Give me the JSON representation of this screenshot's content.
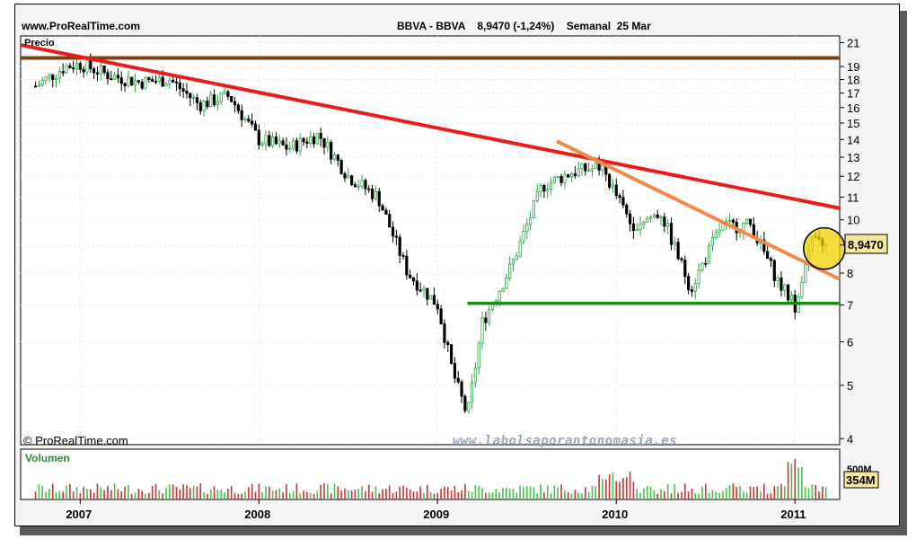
{
  "header": {
    "site": "www.ProRealTime.com",
    "quote": "BBVA - BBVA    8,9470 (-1,24%)    Semanal  25 Mar"
  },
  "watermark": "www.labolsaporantonomasia.es",
  "copyright": "© ProRealTime.com",
  "price_panel": {
    "label": "Precio",
    "last_price_badge": "8,9470"
  },
  "volume_panel": {
    "label": "Volumen",
    "scale_tick": "500M",
    "last_volume_badge": "354M"
  },
  "colors": {
    "up_candle": "#2fa84a",
    "down_candle": "#000000",
    "volume_up": "#44c24a",
    "volume_down": "#cc3333",
    "resistance_brown": "#7a3f12",
    "long_downtrend": "#ee1a1a",
    "short_downtrend": "#f08a4b",
    "support_green": "#1a8a1a",
    "highlight_circle": "#f2d200",
    "badge": "#f7e79a"
  },
  "chart_data": {
    "type": "candlestick",
    "title": "BBVA - BBVA",
    "timeframe": "Semanal",
    "last_close": 8.947,
    "change_pct": -1.24,
    "y_scale": "log",
    "ylim": [
      3.9,
      21.6
    ],
    "y_ticks": [
      4,
      5,
      6,
      7,
      8,
      9,
      10,
      11,
      12,
      13,
      14,
      15,
      16,
      17,
      18,
      19,
      21
    ],
    "x_range": [
      "2006-09",
      "2011-04"
    ],
    "x_ticks": [
      "2007",
      "2008",
      "2009",
      "2010",
      "2011"
    ],
    "close_path": [
      {
        "t": "2006-10",
        "v": 17.5
      },
      {
        "t": "2006-12",
        "v": 19.0
      },
      {
        "t": "2007-01",
        "v": 19.2
      },
      {
        "t": "2007-03",
        "v": 18.3
      },
      {
        "t": "2007-05",
        "v": 17.8
      },
      {
        "t": "2007-07",
        "v": 18.0
      },
      {
        "t": "2007-09",
        "v": 16.2
      },
      {
        "t": "2007-11",
        "v": 16.8
      },
      {
        "t": "2008-01",
        "v": 14.0
      },
      {
        "t": "2008-03",
        "v": 13.5
      },
      {
        "t": "2008-05",
        "v": 14.3
      },
      {
        "t": "2008-07",
        "v": 12.0
      },
      {
        "t": "2008-09",
        "v": 11.0
      },
      {
        "t": "2008-11",
        "v": 8.0
      },
      {
        "t": "2009-01",
        "v": 7.0
      },
      {
        "t": "2009-02",
        "v": 5.3
      },
      {
        "t": "2009-03",
        "v": 4.4
      },
      {
        "t": "2009-04",
        "v": 6.5
      },
      {
        "t": "2009-06",
        "v": 8.3
      },
      {
        "t": "2009-08",
        "v": 11.5
      },
      {
        "t": "2009-10",
        "v": 12.2
      },
      {
        "t": "2009-12",
        "v": 12.5
      },
      {
        "t": "2010-02",
        "v": 9.8
      },
      {
        "t": "2010-04",
        "v": 10.3
      },
      {
        "t": "2010-06",
        "v": 7.5
      },
      {
        "t": "2010-08",
        "v": 9.7
      },
      {
        "t": "2010-10",
        "v": 9.8
      },
      {
        "t": "2010-12",
        "v": 7.6
      },
      {
        "t": "2011-01",
        "v": 7.0
      },
      {
        "t": "2011-02",
        "v": 9.1
      },
      {
        "t": "2011-03",
        "v": 8.95
      }
    ],
    "lines": [
      {
        "name": "resistance",
        "color": "#7a3f12",
        "from": {
          "t": "2006-09",
          "v": 19.7
        },
        "to": {
          "t": "2011-04",
          "v": 19.7
        }
      },
      {
        "name": "long-downtrend",
        "color": "#ee1a1a",
        "from": {
          "t": "2006-09",
          "v": 20.8
        },
        "to": {
          "t": "2011-04",
          "v": 10.5
        }
      },
      {
        "name": "short-downtrend",
        "color": "#f08a4b",
        "from": {
          "t": "2009-09",
          "v": 13.9
        },
        "to": {
          "t": "2011-04",
          "v": 7.8
        }
      },
      {
        "name": "support",
        "color": "#1a8a1a",
        "from": {
          "t": "2009-03",
          "v": 7.05
        },
        "to": {
          "t": "2011-04",
          "v": 7.05
        }
      }
    ],
    "highlight": {
      "t": "2011-02",
      "v": 8.9
    }
  }
}
